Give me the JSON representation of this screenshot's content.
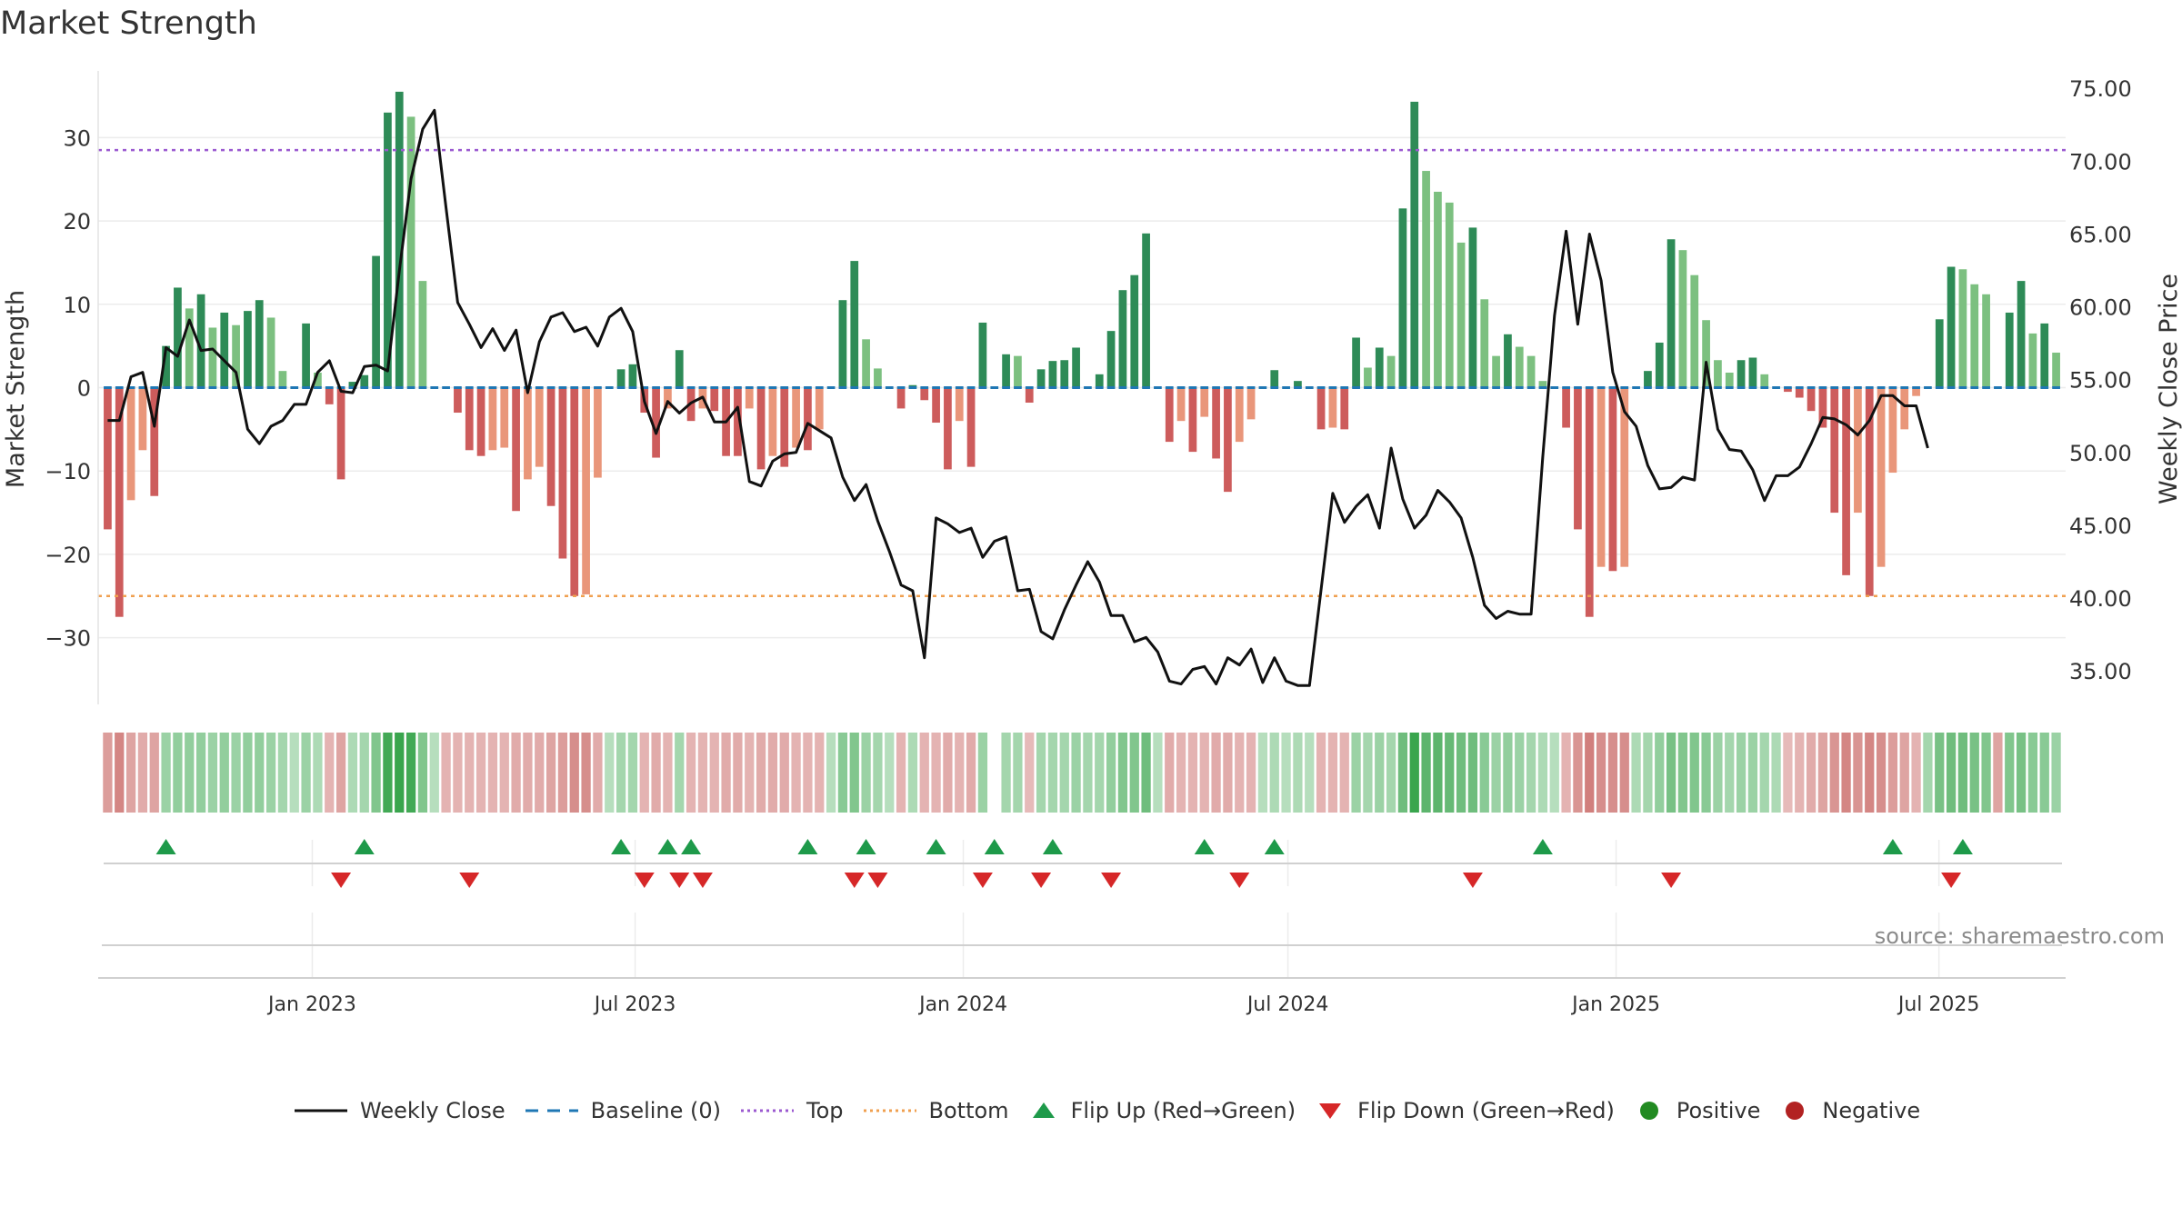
{
  "chart_data": {
    "type": "bar",
    "title": "Market Strength",
    "ylabel": "Market Strength",
    "y2label": "Weekly Close Price",
    "ylim": [
      -38,
      38
    ],
    "y2lim": [
      32.7,
      76.2
    ],
    "yticks": [
      30,
      20,
      10,
      0,
      -10,
      -20,
      -30
    ],
    "yticklabels": [
      "30",
      "20",
      "10",
      "0",
      "−10",
      "−20",
      "−30"
    ],
    "y2ticks": [
      75,
      70,
      65,
      60,
      55,
      50,
      45,
      40,
      35
    ],
    "y2ticklabels": [
      "75.00",
      "70.00",
      "65.00",
      "60.00",
      "55.00",
      "50.00",
      "45.00",
      "40.00",
      "35.00"
    ],
    "x_start": "2022-09-05",
    "x_end": "2025-09-08",
    "xticks": [
      "2023-01-01",
      "2023-07-01",
      "2024-01-01",
      "2024-07-01",
      "2025-01-01",
      "2025-07-01"
    ],
    "xticklabels": [
      "Jan 2023",
      "Jul 2023",
      "Jan 2024",
      "Jul 2024",
      "Jan 2025",
      "Jul 2025"
    ],
    "top_line": 28.5,
    "bottom_line": -25,
    "baseline": 0,
    "grid": true,
    "legend_position": "bottom",
    "strength": [
      -17,
      -27.5,
      -13.5,
      -7.5,
      -13,
      5,
      12,
      9.5,
      11.2,
      7.2,
      9,
      7.5,
      9.2,
      10.5,
      8.4,
      2,
      0,
      7.7,
      1.8,
      -2,
      -11,
      0.7,
      1.5,
      15.8,
      33,
      35.5,
      32.5,
      12.8,
      0,
      0,
      -3,
      -7.5,
      -8.2,
      -7.5,
      -7.2,
      -14.8,
      -11,
      -9.5,
      -14.2,
      -20.5,
      -25,
      -24.8,
      -10.8,
      0,
      2.2,
      2.8,
      -3,
      -8.4,
      -2.5,
      4.5,
      -4,
      -2.5,
      -2.8,
      -8.2,
      -8.2,
      -2.5,
      -9.8,
      -8.2,
      -9.5,
      -7.2,
      -7.5,
      -5,
      0,
      10.5,
      15.2,
      5.8,
      2.3,
      0,
      -2.5,
      0.3,
      -1.5,
      -4.2,
      -9.8,
      -4,
      -9.5,
      7.8,
      0,
      4,
      3.8,
      -1.8,
      2.2,
      3.2,
      3.3,
      4.8,
      0,
      1.6,
      6.8,
      11.7,
      13.5,
      18.5,
      0,
      -6.5,
      -4,
      -7.7,
      -3.5,
      -8.5,
      -12.5,
      -6.5,
      -3.8,
      0,
      2.1,
      0,
      0.8,
      0,
      -5,
      -4.8,
      -5,
      6,
      2.4,
      4.8,
      3.8,
      21.5,
      34.3,
      26,
      23.5,
      22.2,
      17.4,
      19.2,
      10.6,
      3.8,
      6.4,
      4.9,
      3.8,
      0.8,
      0,
      -4.8,
      -17,
      -27.5,
      -21.5,
      -22,
      -21.5,
      0,
      2,
      5.4,
      17.8,
      16.5,
      13.5,
      8.1,
      3.3,
      1.8,
      3.3,
      3.6,
      1.6,
      0,
      -0.5,
      -1.2,
      -2.8,
      -4.8,
      -15,
      -22.5,
      -15,
      -25,
      -21.5,
      -10.2,
      -5,
      -1,
      0,
      8.2,
      14.5,
      14.2,
      12.4,
      11.2,
      0,
      9,
      12.8,
      6.5,
      7.7,
      4.2
    ],
    "close": [
      52.2,
      52.2,
      55.2,
      55.5,
      51.8,
      57.2,
      56.6,
      59.1,
      57,
      57.1,
      56.3,
      55.5,
      51.6,
      50.6,
      51.8,
      52.2,
      53.3,
      53.3,
      55.5,
      56.3,
      54.2,
      54.1,
      55.9,
      56,
      55.6,
      62.5,
      68.8,
      72.2,
      73.5,
      66.8,
      60.3,
      58.8,
      57.2,
      58.5,
      57,
      58.4,
      54.1,
      57.6,
      59.3,
      59.6,
      58.3,
      58.6,
      57.3,
      59.3,
      59.9,
      58.3,
      53.5,
      51.3,
      53.5,
      52.7,
      53.4,
      53.8,
      52.1,
      52.1,
      53.1,
      48,
      47.7,
      49.4,
      49.9,
      50,
      52,
      51.5,
      51,
      48.3,
      46.7,
      47.8,
      45.3,
      43.2,
      40.9,
      40.5,
      35.9,
      45.5,
      45.1,
      44.5,
      44.8,
      42.8,
      43.9,
      44.2,
      40.5,
      40.6,
      37.7,
      37.2,
      39.2,
      40.9,
      42.5,
      41.1,
      38.8,
      38.8,
      37,
      37.3,
      36.3,
      34.3,
      34.1,
      35.1,
      35.3,
      34.1,
      35.9,
      35.4,
      36.5,
      34.2,
      35.9,
      34.3,
      34,
      34,
      40.6,
      47.2,
      45.2,
      46.3,
      47.1,
      44.8,
      50.3,
      46.8,
      44.8,
      45.7,
      47.4,
      46.6,
      45.5,
      42.8,
      39.5,
      38.6,
      39.1,
      38.9,
      38.9,
      49.7,
      59.4,
      65.2,
      58.8,
      65,
      61.8,
      55.5,
      52.8,
      51.8,
      49.1,
      47.5,
      47.6,
      48.3,
      48.1,
      56.2,
      51.6,
      50.2,
      50.1,
      48.8,
      46.7,
      48.4,
      48.4,
      49,
      50.6,
      52.4,
      52.3,
      51.9,
      51.2,
      52.2,
      53.9,
      53.9,
      53.2,
      53.2,
      50.3
    ],
    "color_strip": [
      -0.45,
      -0.6,
      -0.4,
      -0.35,
      -0.4,
      0.35,
      0.4,
      0.4,
      0.4,
      0.35,
      0.4,
      0.35,
      0.4,
      0.4,
      0.35,
      0.3,
      0.2,
      0.35,
      0.25,
      -0.3,
      -0.4,
      0.25,
      0.3,
      0.5,
      0.85,
      0.9,
      0.85,
      0.5,
      0.2,
      -0.3,
      -0.3,
      -0.3,
      -0.3,
      -0.3,
      -0.3,
      -0.35,
      -0.35,
      -0.35,
      -0.4,
      -0.45,
      -0.55,
      -0.55,
      -0.35,
      0.2,
      0.3,
      0.3,
      -0.3,
      -0.35,
      -0.3,
      0.3,
      -0.3,
      -0.3,
      -0.3,
      -0.35,
      -0.35,
      -0.3,
      -0.35,
      -0.35,
      -0.35,
      -0.3,
      -0.3,
      -0.3,
      0.2,
      0.45,
      0.5,
      0.35,
      0.3,
      0.2,
      -0.3,
      0.25,
      -0.3,
      -0.3,
      -0.35,
      -0.3,
      -0.35,
      0.35,
      0,
      0.3,
      0.3,
      -0.25,
      0.3,
      0.3,
      0.3,
      0.35,
      0.3,
      0.3,
      0.4,
      0.5,
      0.5,
      0.6,
      0.2,
      -0.35,
      -0.3,
      -0.3,
      -0.3,
      -0.35,
      -0.35,
      -0.3,
      -0.3,
      0.2,
      0.25,
      0.2,
      0.25,
      0.2,
      -0.3,
      -0.3,
      -0.3,
      0.35,
      0.3,
      0.35,
      0.3,
      0.6,
      0.9,
      0.7,
      0.7,
      0.65,
      0.6,
      0.6,
      0.45,
      0.35,
      0.4,
      0.35,
      0.3,
      0.25,
      0.2,
      -0.3,
      -0.5,
      -0.65,
      -0.55,
      -0.55,
      -0.55,
      0.25,
      0.3,
      0.4,
      0.55,
      0.5,
      0.5,
      0.45,
      0.35,
      0.3,
      0.35,
      0.35,
      0.3,
      0.25,
      -0.25,
      -0.3,
      -0.35,
      -0.4,
      -0.5,
      -0.6,
      -0.5,
      -0.6,
      -0.55,
      -0.45,
      -0.4,
      -0.3,
      0.3,
      0.55,
      0.6,
      0.6,
      0.55,
      0.5,
      -0.4,
      0.5,
      0.55,
      0.45,
      0.45,
      0.35
    ],
    "flip_up": [
      5,
      22,
      44,
      48,
      50,
      60,
      65,
      71,
      76,
      81,
      94,
      100,
      123,
      153,
      159
    ],
    "flip_down": [
      20,
      31,
      46,
      49,
      51,
      64,
      66,
      75,
      80,
      86,
      97,
      117,
      134,
      158
    ],
    "series": [
      {
        "name": "Weekly Close",
        "color": "#111111"
      },
      {
        "name": "Baseline (0)",
        "color": "#1f77b4"
      },
      {
        "name": "Top",
        "color": "#9b59d0"
      },
      {
        "name": "Bottom",
        "color": "#f0a050"
      },
      {
        "name": "Flip Up (Red→Green)",
        "color": "#1e9a4a"
      },
      {
        "name": "Flip Down (Green→Red)",
        "color": "#d62728"
      },
      {
        "name": "Positive",
        "color": "#228b22"
      },
      {
        "name": "Negative",
        "color": "#b22222"
      }
    ],
    "colors": {
      "strong_green": "#2e8b57",
      "light_green": "#7cc080",
      "strong_red": "#cd5c5c",
      "light_red": "#e9967a"
    }
  },
  "source": "source: sharemaestro.com"
}
